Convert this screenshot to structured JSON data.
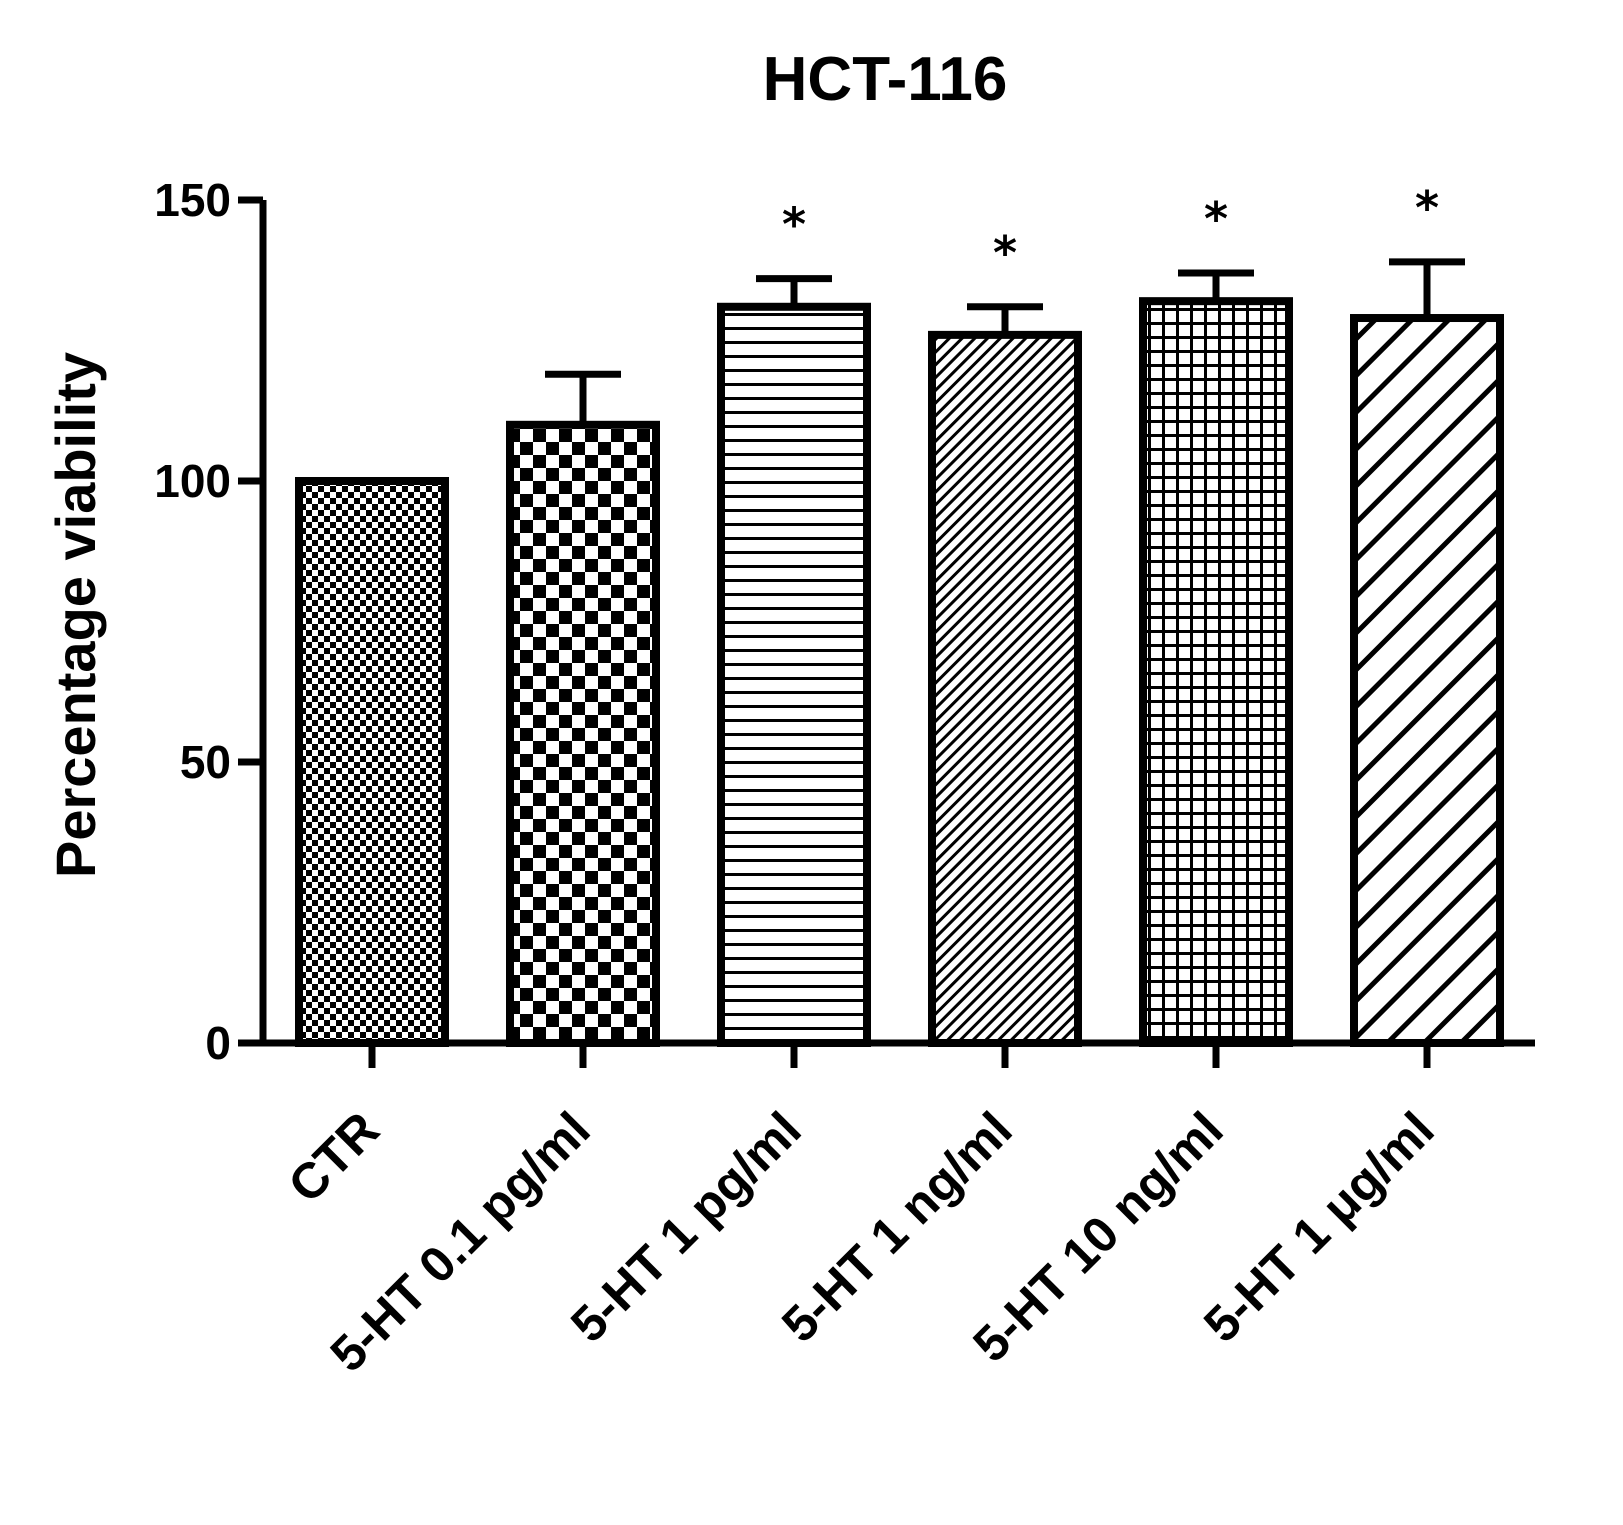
{
  "chart_data": {
    "type": "bar",
    "title": "HCT-116",
    "xlabel": "",
    "ylabel": "Percentage viability",
    "ylim": [
      0,
      150
    ],
    "yticks": [
      "0",
      "50",
      "100",
      "150"
    ],
    "categories": [
      "CTR",
      "5-HT 0.1 pg/ml",
      "5-HT 1 pg/ml",
      "5-HT 1 ng/ml",
      "5-HT 10 ng/ml",
      "5-HT 1 μg/ml"
    ],
    "values": [
      100,
      110,
      131,
      126,
      132,
      129
    ],
    "error_upper": [
      0,
      9,
      5,
      5,
      5,
      10
    ],
    "significance": [
      "",
      "",
      "*",
      "*",
      "*",
      "*"
    ],
    "patterns": [
      "fine-checker",
      "coarse-checker",
      "horizontal-lines",
      "fine-diagonal",
      "grid",
      "coarse-diagonal"
    ],
    "colors": {
      "bar_stroke": "#000000",
      "fill": "#ffffff"
    },
    "grid": false,
    "legend": "none"
  }
}
